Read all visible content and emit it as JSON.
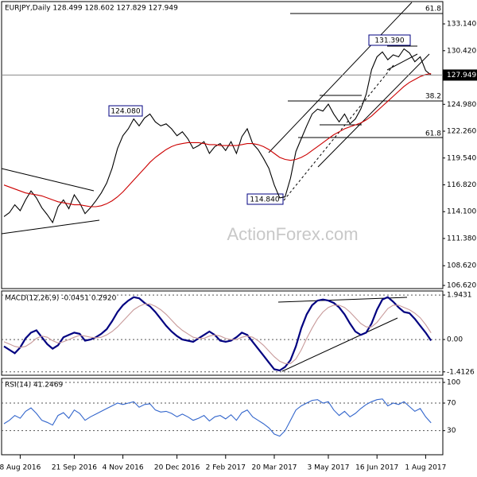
{
  "chart_data": {
    "type": "line",
    "title": "EURJPY,Daily 128.499 128.602 127.829 127.949",
    "categories": [
      null,
      null,
      null,
      "8 Aug 2016",
      null,
      null,
      null,
      null,
      null,
      null,
      null,
      null,
      null,
      "21 Sep 2016",
      null,
      null,
      null,
      null,
      null,
      null,
      null,
      null,
      "4 Nov 2016",
      null,
      null,
      null,
      null,
      null,
      null,
      null,
      null,
      null,
      "20 Dec 2016",
      null,
      null,
      null,
      null,
      null,
      null,
      null,
      null,
      "2 Feb 2017",
      null,
      null,
      null,
      null,
      null,
      null,
      null,
      null,
      "20 Mar 2017",
      null,
      null,
      null,
      null,
      null,
      null,
      null,
      null,
      null,
      "3 May 2017",
      null,
      null,
      null,
      null,
      null,
      null,
      null,
      null,
      "16 Jun 2017",
      null,
      null,
      null,
      null,
      null,
      null,
      null,
      null,
      "1 Aug 2017",
      null
    ],
    "series": [
      {
        "color": "#000000",
        "values": [
          113.6,
          114.0,
          114.8,
          114.2,
          115.3,
          116.2,
          115.5,
          114.5,
          113.8,
          113.0,
          114.6,
          115.3,
          114.4,
          115.8,
          115.0,
          113.9,
          114.5,
          115.2,
          116.0,
          117.0,
          118.5,
          120.5,
          121.8,
          122.5,
          123.5,
          122.8,
          123.6,
          124.0,
          123.2,
          122.8,
          123.0,
          122.5,
          121.8,
          122.2,
          121.5,
          120.5,
          120.8,
          121.2,
          120.0,
          120.7,
          121.0,
          120.3,
          121.2,
          120.0,
          121.7,
          122.5,
          121.0,
          120.4,
          119.5,
          118.5,
          116.8,
          115.5,
          115.6,
          117.5,
          120.2,
          121.5,
          122.8,
          124.0,
          124.5,
          124.3,
          125.0,
          124.0,
          123.2,
          124.0,
          123.0,
          123.5,
          124.5,
          126.0,
          128.5,
          129.8,
          130.3,
          129.5,
          130.0,
          129.8,
          130.6,
          130.2,
          129.3,
          129.8,
          128.4,
          127.949
        ]
      },
      {
        "color": "#cc0000",
        "values": [
          116.8,
          116.6,
          116.4,
          116.2,
          116.0,
          115.9,
          115.8,
          115.7,
          115.5,
          115.3,
          115.1,
          115.0,
          114.9,
          114.8,
          114.8,
          114.7,
          114.6,
          114.6,
          114.7,
          114.9,
          115.2,
          115.6,
          116.1,
          116.7,
          117.3,
          117.9,
          118.5,
          119.1,
          119.6,
          120.0,
          120.4,
          120.7,
          120.9,
          121.0,
          121.1,
          121.1,
          121.1,
          121.0,
          120.9,
          120.9,
          120.8,
          120.8,
          120.8,
          120.8,
          120.9,
          121.0,
          121.0,
          120.9,
          120.7,
          120.4,
          120.0,
          119.6,
          119.4,
          119.3,
          119.4,
          119.6,
          119.9,
          120.3,
          120.7,
          121.1,
          121.5,
          121.9,
          122.2,
          122.5,
          122.7,
          122.9,
          123.1,
          123.4,
          123.8,
          124.3,
          124.8,
          125.3,
          125.8,
          126.3,
          126.8,
          127.2,
          127.5,
          127.8,
          128.0,
          128.1
        ]
      }
    ],
    "ylim": [
      106.3,
      135.4
    ],
    "yticks": [
      {
        "value": 133.14,
        "label": "133.140"
      },
      {
        "value": 130.42,
        "label": "130.420"
      },
      {
        "value": 124.98,
        "label": "124.980"
      },
      {
        "value": 122.26,
        "label": "122.260"
      },
      {
        "value": 119.54,
        "label": "119.540"
      },
      {
        "value": 116.82,
        "label": "116.820"
      },
      {
        "value": 114.1,
        "label": "114.100"
      },
      {
        "value": 111.38,
        "label": "111.380"
      },
      {
        "value": 108.62,
        "label": "108.620"
      },
      {
        "value": 106.62,
        "label": "106.620"
      }
    ],
    "last_price": {
      "value": 127.949,
      "label": "127.949"
    },
    "annotations": [
      "124.080",
      "114.840",
      "131.390"
    ],
    "fib_labels": [
      "61.8",
      "38.2",
      "61.8"
    ],
    "watermark": "ActionForex.com",
    "macd": {
      "label": "MACD(12,26,9) -0.0451 0.2920",
      "ylim": [
        -1.56,
        2.12
      ],
      "yticks": [
        1.9431,
        {
          "value": 0,
          "label": "0.00"
        },
        -1.4126
      ],
      "series": [
        {
          "color": "#000080",
          "values": [
            -0.3,
            -0.45,
            -0.6,
            -0.35,
            0.05,
            0.3,
            0.4,
            0.1,
            -0.2,
            -0.4,
            -0.25,
            0.1,
            0.2,
            0.3,
            0.25,
            -0.05,
            0.0,
            0.1,
            0.25,
            0.45,
            0.8,
            1.2,
            1.5,
            1.7,
            1.85,
            1.8,
            1.6,
            1.45,
            1.2,
            0.9,
            0.6,
            0.35,
            0.15,
            0.0,
            -0.05,
            -0.1,
            0.05,
            0.2,
            0.35,
            0.2,
            -0.05,
            -0.1,
            -0.05,
            0.1,
            0.3,
            0.2,
            -0.1,
            -0.4,
            -0.7,
            -1.0,
            -1.3,
            -1.35,
            -1.2,
            -0.9,
            -0.3,
            0.5,
            1.1,
            1.5,
            1.7,
            1.75,
            1.7,
            1.6,
            1.4,
            1.1,
            0.7,
            0.35,
            0.2,
            0.3,
            0.7,
            1.3,
            1.75,
            1.85,
            1.65,
            1.4,
            1.2,
            1.15,
            0.9,
            0.6,
            0.3,
            -0.0451
          ]
        },
        {
          "color": "#c89a9a",
          "values": [
            -0.1,
            -0.2,
            -0.3,
            -0.35,
            -0.3,
            -0.15,
            0.05,
            0.15,
            0.1,
            -0.05,
            -0.15,
            -0.1,
            0.0,
            0.1,
            0.18,
            0.15,
            0.1,
            0.08,
            0.1,
            0.2,
            0.35,
            0.55,
            0.8,
            1.05,
            1.3,
            1.45,
            1.55,
            1.55,
            1.45,
            1.3,
            1.1,
            0.85,
            0.6,
            0.4,
            0.25,
            0.1,
            0.05,
            0.05,
            0.15,
            0.2,
            0.15,
            0.05,
            0.0,
            0.0,
            0.1,
            0.15,
            0.1,
            -0.05,
            -0.25,
            -0.5,
            -0.75,
            -0.95,
            -1.05,
            -1.05,
            -0.85,
            -0.45,
            0.05,
            0.5,
            0.9,
            1.2,
            1.4,
            1.5,
            1.5,
            1.4,
            1.2,
            0.95,
            0.7,
            0.55,
            0.55,
            0.75,
            1.05,
            1.35,
            1.5,
            1.5,
            1.4,
            1.3,
            1.15,
            0.95,
            0.65,
            0.292
          ]
        }
      ]
    },
    "rsi": {
      "label": "RSI(14) 41.2469",
      "ylim": [
        -5,
        105.8
      ],
      "yticks": [
        100,
        70,
        30
      ],
      "series": [
        {
          "color": "#3366cc",
          "values": [
            40,
            45,
            52,
            48,
            58,
            63,
            55,
            45,
            42,
            38,
            52,
            56,
            48,
            60,
            55,
            45,
            50,
            54,
            58,
            62,
            66,
            70,
            68,
            70,
            72,
            64,
            68,
            69,
            60,
            57,
            58,
            55,
            50,
            54,
            50,
            45,
            48,
            52,
            44,
            50,
            52,
            47,
            53,
            45,
            56,
            60,
            50,
            45,
            40,
            34,
            25,
            22,
            30,
            45,
            60,
            66,
            70,
            74,
            75,
            70,
            72,
            60,
            52,
            58,
            50,
            55,
            62,
            68,
            72,
            75,
            76,
            66,
            70,
            68,
            72,
            65,
            58,
            62,
            50,
            41.2469
          ]
        }
      ]
    }
  }
}
